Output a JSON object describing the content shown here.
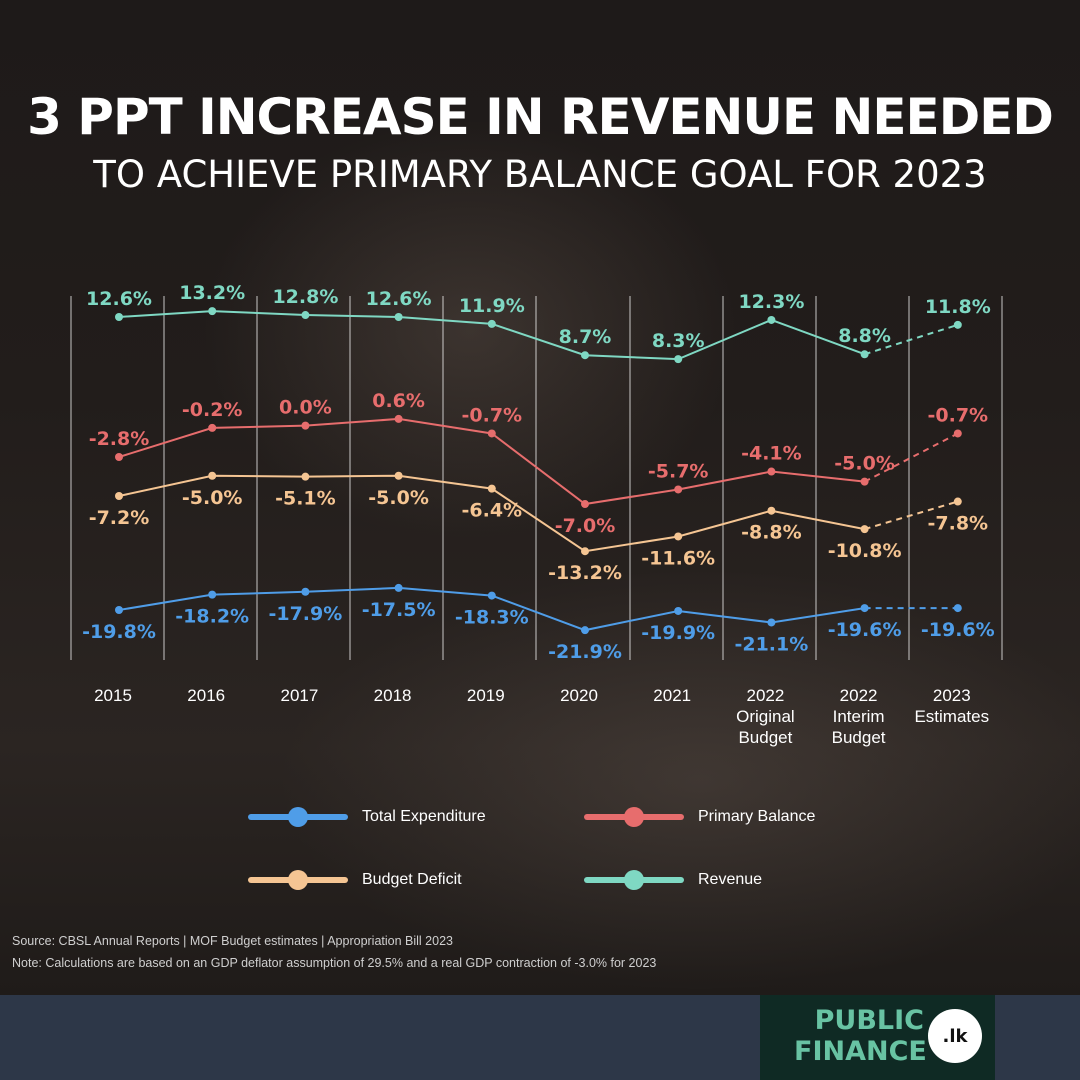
{
  "header": {
    "title": "3 PPT INCREASE IN REVENUE NEEDED",
    "subtitle": "TO ACHIEVE PRIMARY BALANCE GOAL FOR 2023"
  },
  "colors": {
    "revenue": "#7fd8c3",
    "primary_balance": "#e76d6d",
    "budget_deficit": "#f5c593",
    "total_expenditure": "#4f9de8"
  },
  "chart_data": {
    "type": "line",
    "title": "3 PPT INCREASE IN REVENUE NEEDED",
    "subtitle": "TO ACHIEVE PRIMARY BALANCE GOAL FOR 2023",
    "categories": [
      [
        "2015"
      ],
      [
        "2016"
      ],
      [
        "2017"
      ],
      [
        "2018"
      ],
      [
        "2019"
      ],
      [
        "2020"
      ],
      [
        "2021"
      ],
      [
        "2022",
        "Original",
        "Budget"
      ],
      [
        "2022",
        "Interim",
        "Budget"
      ],
      [
        "2023",
        "Estimates"
      ]
    ],
    "grid": "vertical",
    "dashed_last_segment": true,
    "series": [
      {
        "key": "revenue",
        "name": "Revenue",
        "values": [
          12.6,
          13.2,
          12.8,
          12.6,
          11.9,
          8.7,
          8.3,
          12.3,
          8.8,
          11.8
        ],
        "labels": [
          "12.6%",
          "13.2%",
          "12.8%",
          "12.6%",
          "11.9%",
          "8.7%",
          "8.3%",
          "12.3%",
          "8.8%",
          "11.8%"
        ]
      },
      {
        "key": "primary_balance",
        "name": "Primary Balance",
        "values": [
          -2.8,
          -0.2,
          0.0,
          0.6,
          -0.7,
          -7.0,
          -5.7,
          -4.1,
          -5.0,
          -0.7
        ],
        "labels": [
          "-2.8%",
          "-0.2%",
          "0.0%",
          "0.6%",
          "-0.7%",
          "-7.0%",
          "-5.7%",
          "-4.1%",
          "-5.0%",
          "-0.7%"
        ]
      },
      {
        "key": "budget_deficit",
        "name": "Budget Deficit",
        "values": [
          -7.2,
          -5.0,
          -5.1,
          -5.0,
          -6.4,
          -13.2,
          -11.6,
          -8.8,
          -10.8,
          -7.8
        ],
        "labels": [
          "-7.2%",
          "-5.0%",
          "-5.1%",
          "-5.0%",
          "-6.4%",
          "-13.2%",
          "-11.6%",
          "-8.8%",
          "-10.8%",
          "-7.8%"
        ]
      },
      {
        "key": "total_expenditure",
        "name": "Total Expenditure",
        "values": [
          -19.8,
          -18.2,
          -17.9,
          -17.5,
          -18.3,
          -21.9,
          -19.9,
          -21.1,
          -19.6,
          -19.6
        ],
        "labels": [
          "-19.8%",
          "-18.2%",
          "-17.9%",
          "-17.5%",
          "-18.3%",
          "-21.9%",
          "-19.9%",
          "-21.1%",
          "-19.6%",
          "-19.6%"
        ]
      }
    ]
  },
  "legend": {
    "total_expenditure": "Total Expenditure",
    "primary_balance": "Primary Balance",
    "budget_deficit": "Budget Deficit",
    "revenue": "Revenue"
  },
  "source": {
    "line1": "Source: CBSL Annual Reports | MOF Budget estimates | Appropriation Bill 2023",
    "line2": "Note: Calculations are based on an GDP deflator assumption of 29.5% and a real GDP contraction of -3.0% for 2023"
  },
  "logo": {
    "line1": "PUBLIC",
    "line2": "FINANCE",
    "badge": ".lk"
  }
}
